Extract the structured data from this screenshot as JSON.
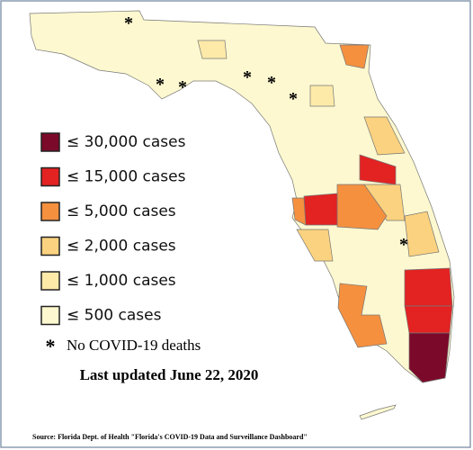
{
  "legend": [
    {
      "label": "≤ 30,000 cases",
      "color": "#7b0a2a"
    },
    {
      "label": "≤ 15,000 cases",
      "color": "#e32222"
    },
    {
      "label": "≤ 5,000 cases",
      "color": "#f5903f"
    },
    {
      "label": "≤ 2,000 cases",
      "color": "#fbd27f"
    },
    {
      "label": "≤ 1,000 cases",
      "color": "#fdeaa9"
    },
    {
      "label": "≤ 500 cases",
      "color": "#fdf8cf"
    }
  ],
  "no_deaths": {
    "symbol": "*",
    "label": "No COVID-19 deaths"
  },
  "updated": "Last updated June 22, 2020",
  "source": "Source: Florida Dept. of Health \"Florida's COVID-19 Data and Surveillance Dashboard\""
}
